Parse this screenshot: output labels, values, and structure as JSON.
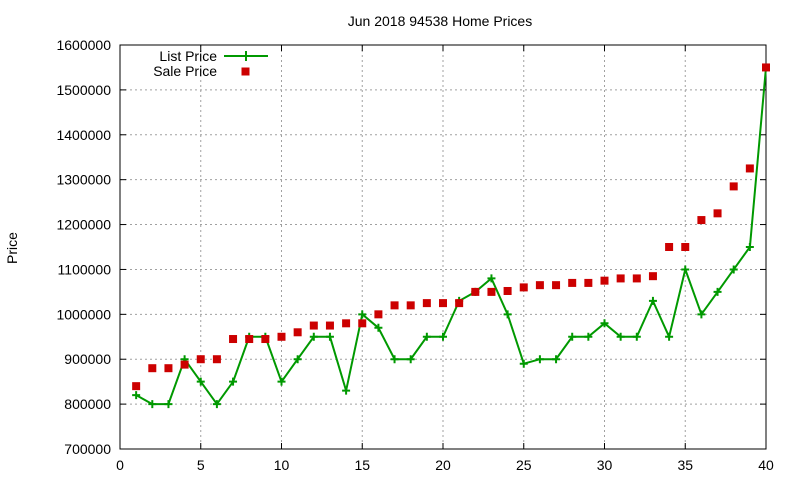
{
  "chart_data": {
    "type": "line",
    "title": "Jun 2018 94538 Home Prices",
    "xlabel": "",
    "ylabel": "Price",
    "xlim": [
      0,
      40
    ],
    "ylim": [
      700000,
      1600000
    ],
    "xticks": [
      "0",
      "5",
      "10",
      "15",
      "20",
      "25",
      "30",
      "35",
      "40"
    ],
    "yticks": [
      "700000",
      "800000",
      "900000",
      "1000000",
      "1100000",
      "1200000",
      "1300000",
      "1400000",
      "1500000",
      "1600000"
    ],
    "grid": true,
    "legend_position": "top-left",
    "series": [
      {
        "name": "List Price",
        "style": "line-with-plus",
        "color": "#009900",
        "x": [
          1,
          2,
          3,
          4,
          5,
          6,
          7,
          8,
          9,
          10,
          11,
          12,
          13,
          14,
          15,
          16,
          17,
          18,
          19,
          20,
          21,
          22,
          23,
          24,
          25,
          26,
          27,
          28,
          29,
          30,
          31,
          32,
          33,
          34,
          35,
          36,
          37,
          38,
          39,
          40
        ],
        "y": [
          820000,
          800000,
          800000,
          900000,
          850000,
          800000,
          850000,
          950000,
          950000,
          850000,
          900000,
          950000,
          950000,
          830000,
          1000000,
          970000,
          900000,
          900000,
          950000,
          950000,
          1030000,
          1050000,
          1080000,
          1000000,
          890000,
          900000,
          900000,
          950000,
          950000,
          980000,
          950000,
          950000,
          1030000,
          950000,
          1100000,
          1000000,
          1050000,
          1100000,
          1150000,
          1550000
        ]
      },
      {
        "name": "Sale Price",
        "style": "square-markers",
        "color": "#cc0000",
        "x": [
          1,
          2,
          3,
          4,
          5,
          6,
          7,
          8,
          9,
          10,
          11,
          12,
          13,
          14,
          15,
          16,
          17,
          18,
          19,
          20,
          21,
          22,
          23,
          24,
          25,
          26,
          27,
          28,
          29,
          30,
          31,
          32,
          33,
          34,
          35,
          36,
          37,
          38,
          39,
          40
        ],
        "y": [
          840000,
          880000,
          880000,
          888000,
          900000,
          900000,
          945000,
          945000,
          945000,
          950000,
          960000,
          975000,
          975000,
          980000,
          980000,
          1000000,
          1020000,
          1020000,
          1025000,
          1025000,
          1025000,
          1050000,
          1050000,
          1052000,
          1060000,
          1065000,
          1065000,
          1070000,
          1070000,
          1075000,
          1080000,
          1080000,
          1085000,
          1150000,
          1150000,
          1210000,
          1225000,
          1285000,
          1325000,
          1550000
        ]
      }
    ]
  }
}
